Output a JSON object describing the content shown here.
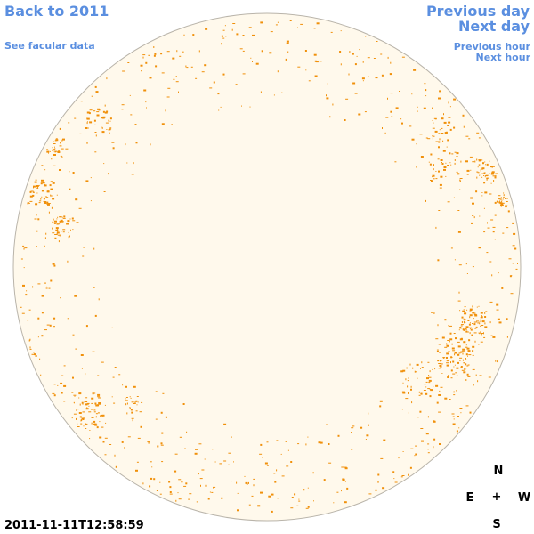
{
  "nav": {
    "back_label": "Back to 2011",
    "facular_label": "See facular data",
    "prev_day_label": "Previous day",
    "next_day_label": "Next day",
    "prev_hour_label": "Previous hour",
    "next_hour_label": "Next hour"
  },
  "timestamp": "2011-11-11T12:58:59",
  "compass": {
    "north": "N",
    "east": "E",
    "center": "+",
    "west": "W",
    "south": "S"
  },
  "colors": {
    "disk_fill": "#fff9ec",
    "disk_stroke": "#b9b4aa",
    "facula": "#f0900a",
    "link": "#5b8fe0"
  },
  "icons": {
    "compass": "compass-rose-icon"
  }
}
